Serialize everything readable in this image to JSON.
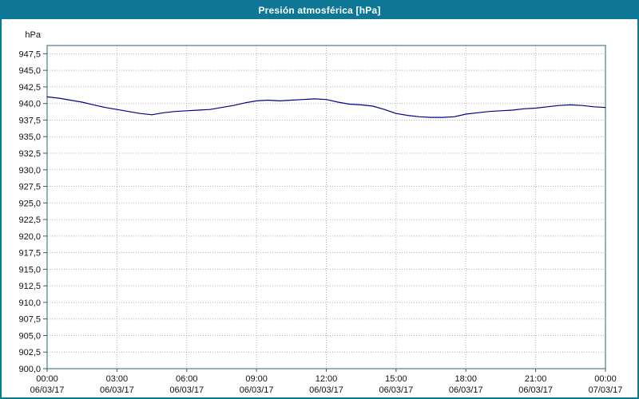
{
  "window": {
    "accent_color": "#0f7796"
  },
  "chart_data": {
    "type": "line",
    "title": "Presión atmosférica [hPa]",
    "ylabel": "hPa",
    "ylim": [
      900,
      948.75
    ],
    "xlim": [
      0,
      24
    ],
    "grid": "dotted",
    "grid_color": "#b0b0b0",
    "frame_color": "#2e6072",
    "line_color": "#00008b",
    "yticks": [
      900,
      902.5,
      905,
      907.5,
      910,
      912.5,
      915,
      917.5,
      920,
      922.5,
      925,
      927.5,
      930,
      932.5,
      935,
      937.5,
      940,
      942.5,
      945,
      947.5
    ],
    "ytick_labels": [
      "900,0",
      "902,5",
      "905,0",
      "907,5",
      "910,0",
      "912,5",
      "915,0",
      "917,5",
      "920,0",
      "922,5",
      "925,0",
      "927,5",
      "930,0",
      "932,5",
      "935,0",
      "937,5",
      "940,0",
      "942,5",
      "945,0",
      "947,5"
    ],
    "xticks": [
      0,
      3,
      6,
      9,
      12,
      15,
      18,
      21,
      24
    ],
    "xtick_times": [
      "00:00",
      "03:00",
      "06:00",
      "09:00",
      "12:00",
      "15:00",
      "18:00",
      "21:00",
      "00:00"
    ],
    "xtick_dates": [
      "06/03/17",
      "06/03/17",
      "06/03/17",
      "06/03/17",
      "06/03/17",
      "06/03/17",
      "06/03/17",
      "06/03/17",
      "07/03/17"
    ],
    "series": [
      {
        "name": "Presión atmosférica",
        "x": [
          0,
          0.5,
          1,
          1.5,
          2,
          2.5,
          3,
          3.5,
          4,
          4.5,
          5,
          5.5,
          6,
          6.5,
          7,
          7.5,
          8,
          8.5,
          9,
          9.5,
          10,
          10.5,
          11,
          11.5,
          12,
          12.5,
          13,
          13.5,
          14,
          14.5,
          15,
          15.5,
          16,
          16.5,
          17,
          17.5,
          18,
          18.5,
          19,
          19.5,
          20,
          20.5,
          21,
          21.5,
          22,
          22.5,
          23,
          23.5,
          24
        ],
        "y": [
          941.0,
          940.8,
          940.5,
          940.2,
          939.8,
          939.4,
          939.1,
          938.8,
          938.5,
          938.3,
          938.6,
          938.8,
          938.9,
          939.0,
          939.1,
          939.4,
          939.7,
          940.1,
          940.4,
          940.5,
          940.4,
          940.5,
          940.6,
          940.7,
          940.6,
          940.2,
          939.9,
          939.8,
          939.6,
          939.1,
          938.5,
          938.2,
          938.0,
          937.9,
          937.9,
          938.0,
          938.4,
          938.6,
          938.8,
          938.9,
          939.0,
          939.2,
          939.3,
          939.5,
          939.7,
          939.8,
          939.7,
          939.5,
          939.4
        ]
      }
    ]
  }
}
